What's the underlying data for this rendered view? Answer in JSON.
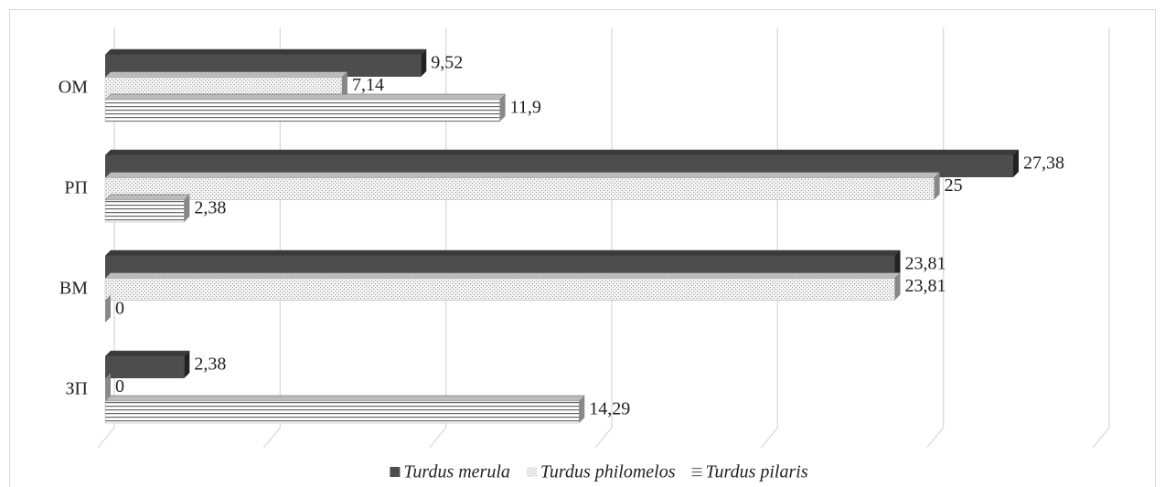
{
  "chart_data": {
    "type": "bar3d_horizontal",
    "categories": [
      "ОМ",
      "РП",
      "ВМ",
      "ЗП"
    ],
    "series": [
      {
        "name": "Turdus merula",
        "color": "#4d4d4d",
        "pattern": "solid",
        "values": [
          9.52,
          27.38,
          23.81,
          2.38
        ],
        "value_labels": [
          "9,52",
          "27,38",
          "23,81",
          "2,38"
        ]
      },
      {
        "name": "Turdus philomelos",
        "color": "#bfbfbf",
        "pattern": "dots",
        "values": [
          7.14,
          25,
          23.81,
          0
        ],
        "value_labels": [
          "7,14",
          "25",
          "23,81",
          "0"
        ]
      },
      {
        "name": "Turdus pilaris",
        "color": "#7f7f7f",
        "pattern": "stripes",
        "values": [
          11.9,
          2.38,
          0,
          14.29
        ],
        "value_labels": [
          "11,9",
          "2,38",
          "0",
          "14,29"
        ]
      }
    ],
    "xlim": [
      0,
      30
    ],
    "xticks": [
      0,
      5,
      10,
      15,
      20,
      25,
      30
    ],
    "grid": true,
    "legend": "bottom"
  }
}
